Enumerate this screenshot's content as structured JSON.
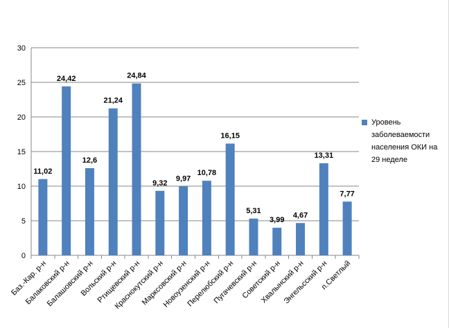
{
  "chart_data": {
    "type": "bar",
    "categories": [
      "Баз.-Кар. р-н",
      "Балаковский р-н",
      "Балашовский р-н",
      "Вольский р-н",
      "Ртищевский р-н",
      "Краснокутский р-н",
      "Марксовский р-н",
      "Новоузенский р-н",
      "Перелюбский р-н",
      "Пугачевский р-н",
      "Советский р-н",
      "Хвалынский р-н",
      "Энгельсский р-н",
      "п.Светлый"
    ],
    "series": [
      {
        "name": "Уровень заболеваемости населения ОКИ на 29 неделе",
        "values": [
          11.02,
          24.42,
          12.6,
          21.24,
          24.84,
          9.32,
          9.97,
          10.78,
          16.15,
          5.31,
          3.99,
          4.67,
          13.31,
          7.77
        ],
        "labels": [
          "11,02",
          "24,42",
          "12,6",
          "21,24",
          "24,84",
          "9,32",
          "9,97",
          "10,78",
          "16,15",
          "5,31",
          "3,99",
          "4,67",
          "13,31",
          "7,77"
        ],
        "color": "#4f81bd"
      }
    ],
    "yticks": [
      "0",
      "5",
      "10",
      "15",
      "20",
      "25",
      "30"
    ],
    "ylim": [
      0,
      30
    ],
    "grid": true,
    "legend": "right",
    "title": "",
    "xlabel": "",
    "ylabel": ""
  }
}
